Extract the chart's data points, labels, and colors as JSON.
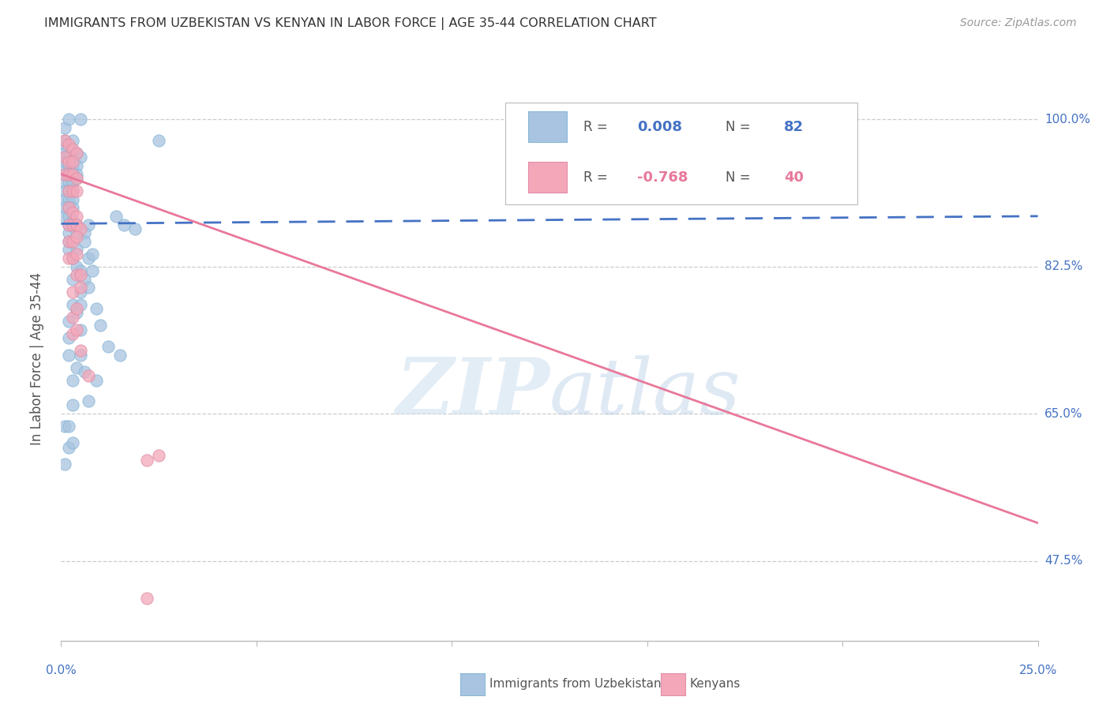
{
  "title": "IMMIGRANTS FROM UZBEKISTAN VS KENYAN IN LABOR FORCE | AGE 35-44 CORRELATION CHART",
  "source": "Source: ZipAtlas.com",
  "ylabel": "In Labor Force | Age 35-44",
  "ytick_vals": [
    0.475,
    0.65,
    0.825,
    1.0
  ],
  "ytick_labels": [
    "47.5%",
    "65.0%",
    "82.5%",
    "100.0%"
  ],
  "xmin": 0.0,
  "xmax": 0.25,
  "ymin": 0.38,
  "ymax": 1.05,
  "uzbek_color": "#a8c4e0",
  "kenyan_color": "#f4a7b9",
  "uzbek_line_color": "#4472c4",
  "kenyan_line_color": "#e8789a",
  "uzbek_scatter": [
    [
      0.001,
      0.99
    ],
    [
      0.002,
      1.0
    ],
    [
      0.005,
      1.0
    ],
    [
      0.001,
      0.975
    ],
    [
      0.001,
      0.97
    ],
    [
      0.003,
      0.975
    ],
    [
      0.025,
      0.975
    ],
    [
      0.001,
      0.96
    ],
    [
      0.001,
      0.955
    ],
    [
      0.001,
      0.95
    ],
    [
      0.002,
      0.955
    ],
    [
      0.003,
      0.955
    ],
    [
      0.004,
      0.96
    ],
    [
      0.005,
      0.955
    ],
    [
      0.001,
      0.945
    ],
    [
      0.002,
      0.945
    ],
    [
      0.003,
      0.945
    ],
    [
      0.004,
      0.945
    ],
    [
      0.001,
      0.935
    ],
    [
      0.002,
      0.935
    ],
    [
      0.003,
      0.935
    ],
    [
      0.004,
      0.935
    ],
    [
      0.001,
      0.925
    ],
    [
      0.002,
      0.925
    ],
    [
      0.003,
      0.925
    ],
    [
      0.004,
      0.93
    ],
    [
      0.001,
      0.915
    ],
    [
      0.002,
      0.915
    ],
    [
      0.003,
      0.915
    ],
    [
      0.001,
      0.905
    ],
    [
      0.002,
      0.905
    ],
    [
      0.003,
      0.905
    ],
    [
      0.001,
      0.895
    ],
    [
      0.002,
      0.895
    ],
    [
      0.003,
      0.895
    ],
    [
      0.001,
      0.885
    ],
    [
      0.002,
      0.885
    ],
    [
      0.003,
      0.88
    ],
    [
      0.002,
      0.875
    ],
    [
      0.003,
      0.875
    ],
    [
      0.004,
      0.875
    ],
    [
      0.007,
      0.875
    ],
    [
      0.002,
      0.865
    ],
    [
      0.004,
      0.865
    ],
    [
      0.006,
      0.865
    ],
    [
      0.002,
      0.855
    ],
    [
      0.006,
      0.855
    ],
    [
      0.002,
      0.845
    ],
    [
      0.004,
      0.845
    ],
    [
      0.003,
      0.835
    ],
    [
      0.007,
      0.835
    ],
    [
      0.008,
      0.84
    ],
    [
      0.004,
      0.825
    ],
    [
      0.005,
      0.82
    ],
    [
      0.008,
      0.82
    ],
    [
      0.003,
      0.81
    ],
    [
      0.006,
      0.81
    ],
    [
      0.005,
      0.795
    ],
    [
      0.007,
      0.8
    ],
    [
      0.003,
      0.78
    ],
    [
      0.005,
      0.78
    ],
    [
      0.002,
      0.76
    ],
    [
      0.004,
      0.77
    ],
    [
      0.009,
      0.775
    ],
    [
      0.002,
      0.74
    ],
    [
      0.005,
      0.75
    ],
    [
      0.01,
      0.755
    ],
    [
      0.002,
      0.72
    ],
    [
      0.005,
      0.72
    ],
    [
      0.012,
      0.73
    ],
    [
      0.004,
      0.705
    ],
    [
      0.006,
      0.7
    ],
    [
      0.015,
      0.72
    ],
    [
      0.003,
      0.69
    ],
    [
      0.009,
      0.69
    ],
    [
      0.003,
      0.66
    ],
    [
      0.007,
      0.665
    ],
    [
      0.001,
      0.635
    ],
    [
      0.002,
      0.635
    ],
    [
      0.002,
      0.61
    ],
    [
      0.003,
      0.615
    ],
    [
      0.001,
      0.59
    ],
    [
      0.014,
      0.885
    ],
    [
      0.016,
      0.875
    ],
    [
      0.019,
      0.87
    ]
  ],
  "kenyan_scatter": [
    [
      0.001,
      0.975
    ],
    [
      0.002,
      0.97
    ],
    [
      0.003,
      0.965
    ],
    [
      0.004,
      0.96
    ],
    [
      0.001,
      0.955
    ],
    [
      0.002,
      0.95
    ],
    [
      0.003,
      0.95
    ],
    [
      0.001,
      0.935
    ],
    [
      0.002,
      0.935
    ],
    [
      0.003,
      0.935
    ],
    [
      0.004,
      0.93
    ],
    [
      0.002,
      0.915
    ],
    [
      0.003,
      0.915
    ],
    [
      0.004,
      0.915
    ],
    [
      0.002,
      0.895
    ],
    [
      0.003,
      0.89
    ],
    [
      0.004,
      0.885
    ],
    [
      0.002,
      0.875
    ],
    [
      0.003,
      0.875
    ],
    [
      0.004,
      0.875
    ],
    [
      0.005,
      0.87
    ],
    [
      0.002,
      0.855
    ],
    [
      0.003,
      0.855
    ],
    [
      0.004,
      0.86
    ],
    [
      0.002,
      0.835
    ],
    [
      0.003,
      0.835
    ],
    [
      0.004,
      0.84
    ],
    [
      0.004,
      0.815
    ],
    [
      0.005,
      0.815
    ],
    [
      0.003,
      0.795
    ],
    [
      0.005,
      0.8
    ],
    [
      0.003,
      0.765
    ],
    [
      0.004,
      0.775
    ],
    [
      0.003,
      0.745
    ],
    [
      0.004,
      0.75
    ],
    [
      0.005,
      0.725
    ],
    [
      0.007,
      0.695
    ],
    [
      0.022,
      0.595
    ],
    [
      0.022,
      0.43
    ],
    [
      0.025,
      0.6
    ]
  ],
  "watermark_zip": "ZIP",
  "watermark_atlas": "atlas",
  "background_color": "#ffffff"
}
